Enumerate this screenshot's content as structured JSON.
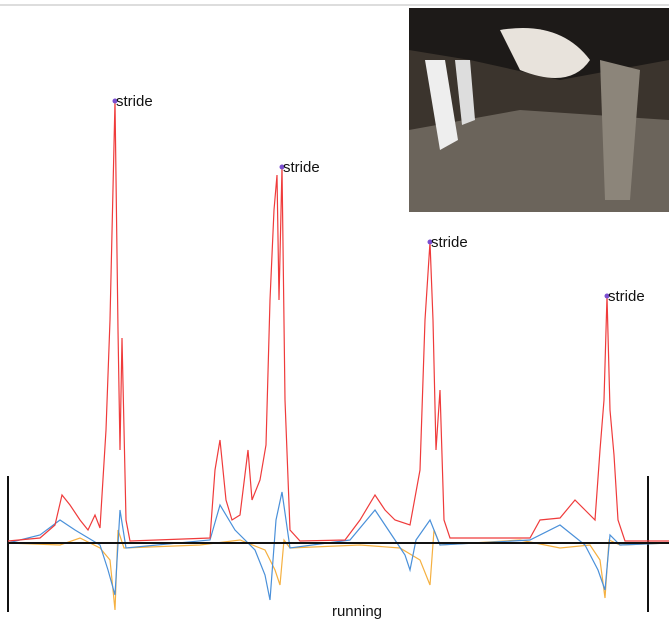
{
  "annotations": [
    {
      "label": "stride"
    },
    {
      "label": "stride"
    },
    {
      "label": "stride"
    },
    {
      "label": "stride"
    }
  ],
  "caption": "running"
}
